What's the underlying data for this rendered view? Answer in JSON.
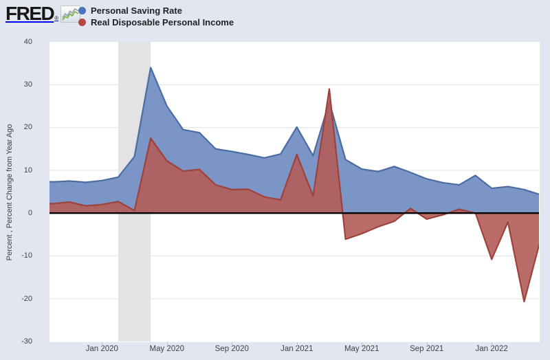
{
  "header": {
    "logo_text": "FRED",
    "registered_mark": "®",
    "legend": [
      {
        "label": "Personal Saving Rate",
        "color": "#4a74ba"
      },
      {
        "label": "Real Disposable Personal Income",
        "color": "#b04a43"
      }
    ]
  },
  "chart_data": {
    "type": "area",
    "title": "",
    "ylabel": "Percent , Percent Change from Year Ago",
    "ylim": [
      -30,
      40
    ],
    "yticks": [
      40,
      30,
      20,
      10,
      0,
      -10,
      -20,
      -30
    ],
    "xtick_labels": [
      "Jan 2020",
      "May 2020",
      "Sep 2020",
      "Jan 2021",
      "May 2021",
      "Sep 2021",
      "Jan 2022"
    ],
    "grid": true,
    "legend_position": "top-left",
    "categories": [
      "Sep 2019",
      "Oct 2019",
      "Nov 2019",
      "Dec 2019",
      "Jan 2020",
      "Feb 2020",
      "Mar 2020",
      "Apr 2020",
      "May 2020",
      "Jun 2020",
      "Jul 2020",
      "Aug 2020",
      "Sep 2020",
      "Oct 2020",
      "Nov 2020",
      "Dec 2020",
      "Jan 2021",
      "Feb 2021",
      "Mar 2021",
      "Apr 2021",
      "May 2021",
      "Jun 2021",
      "Jul 2021",
      "Aug 2021",
      "Sep 2021",
      "Oct 2021",
      "Nov 2021",
      "Dec 2021",
      "Jan 2022",
      "Feb 2022",
      "Mar 2022",
      "Apr 2022"
    ],
    "series": [
      {
        "name": "Personal Saving Rate",
        "fill": "#7b96c6",
        "stroke": "#4a6ca3",
        "values": [
          7.5,
          7.3,
          7.5,
          7.2,
          7.6,
          8.4,
          13.2,
          34.0,
          25.0,
          19.5,
          18.8,
          15.0,
          14.4,
          13.7,
          12.9,
          13.8,
          20.1,
          13.4,
          26.0,
          12.5,
          10.3,
          9.7,
          10.9,
          9.5,
          8.0,
          7.1,
          6.6,
          8.8,
          5.8,
          6.2,
          5.5,
          4.3
        ]
      },
      {
        "name": "Real Disposable Personal Income",
        "fill": "rgba(178,92,88,0.9)",
        "stroke": "#9e423c",
        "values": [
          2.3,
          2.2,
          2.6,
          1.7,
          2.0,
          2.7,
          0.6,
          17.5,
          12.2,
          9.8,
          10.2,
          6.6,
          5.5,
          5.6,
          3.8,
          3.1,
          13.7,
          4.0,
          29.0,
          -6.1,
          -4.8,
          -3.2,
          -1.9,
          1.1,
          -1.4,
          -0.4,
          0.9,
          0.0,
          -10.8,
          -2.1,
          -20.7,
          -6.3
        ]
      }
    ],
    "recession_band": {
      "start": "Feb 2020",
      "end": "Apr 2020",
      "color": "#e3e3e5"
    },
    "zero_line_color": "#000000",
    "plot_background": "#ffffff",
    "gridline_color": "#e5e5e5"
  }
}
